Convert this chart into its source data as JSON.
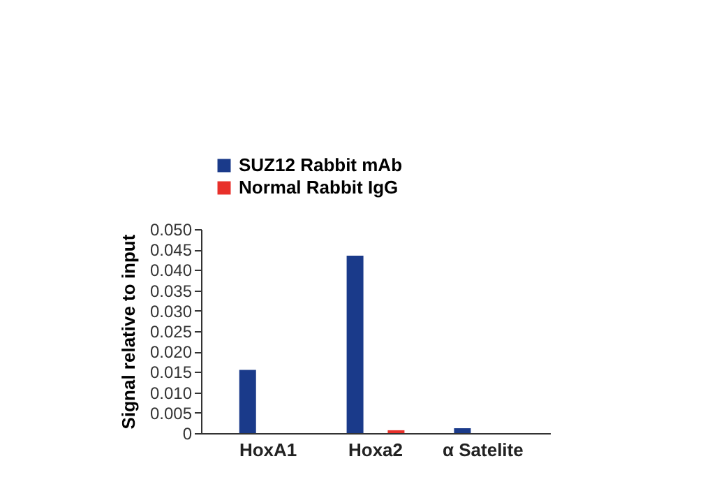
{
  "chart_data": {
    "type": "bar",
    "ylabel": "Signal relative to input",
    "categories": [
      "HoxA1",
      "Hoxa2",
      "α Satelite"
    ],
    "series": [
      {
        "name": "SUZ12 Rabbit mAb",
        "color": "#1a3a8a",
        "values": [
          0.0155,
          0.0435,
          0.0012
        ]
      },
      {
        "name": "Normal Rabbit IgG",
        "color": "#e8302a",
        "values": [
          0,
          0.0007,
          0
        ]
      }
    ],
    "ylim": [
      0,
      0.05
    ],
    "yticks": [
      0,
      {
        "value": 0.005,
        "label": "0.005"
      },
      {
        "value": 0.01,
        "label": "0.010"
      },
      {
        "value": 0.015,
        "label": "0.015"
      },
      {
        "value": 0.02,
        "label": "0.020"
      },
      {
        "value": 0.025,
        "label": "0.025"
      },
      {
        "value": 0.03,
        "label": "0.030"
      },
      {
        "value": 0.035,
        "label": "0.035"
      },
      {
        "value": 0.04,
        "label": "0.040"
      },
      {
        "value": 0.045,
        "label": "0.045"
      },
      {
        "value": 0.05,
        "label": "0.050"
      }
    ],
    "grid": false,
    "legend": "top"
  }
}
